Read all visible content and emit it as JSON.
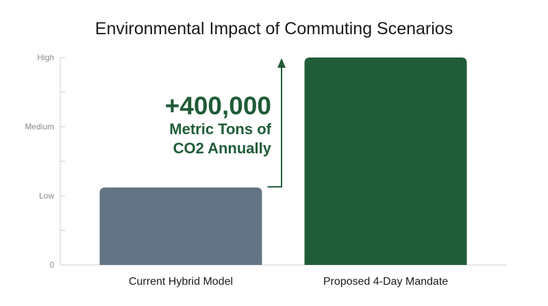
{
  "chart_data": {
    "type": "bar",
    "title": "Environmental Impact of Commuting Scenarios",
    "xlabel": "",
    "ylabel": "",
    "categories": [
      "Current Hybrid Model",
      "Proposed 4-Day Mandate"
    ],
    "values": [
      1.12,
      3.0
    ],
    "ylim": [
      0,
      3
    ],
    "yticks": [
      {
        "value": 0,
        "label": "0"
      },
      {
        "value": 1,
        "label": "Low"
      },
      {
        "value": 2,
        "label": "Medium"
      },
      {
        "value": 3,
        "label": "High"
      }
    ],
    "grid": false,
    "legend": "none",
    "colors": [
      "#637585",
      "#1f5c37"
    ],
    "annotation": {
      "headline": "+400,000",
      "line1": "Metric Tons of",
      "line2": "CO2 Annually",
      "color": "#1f5c37"
    }
  }
}
